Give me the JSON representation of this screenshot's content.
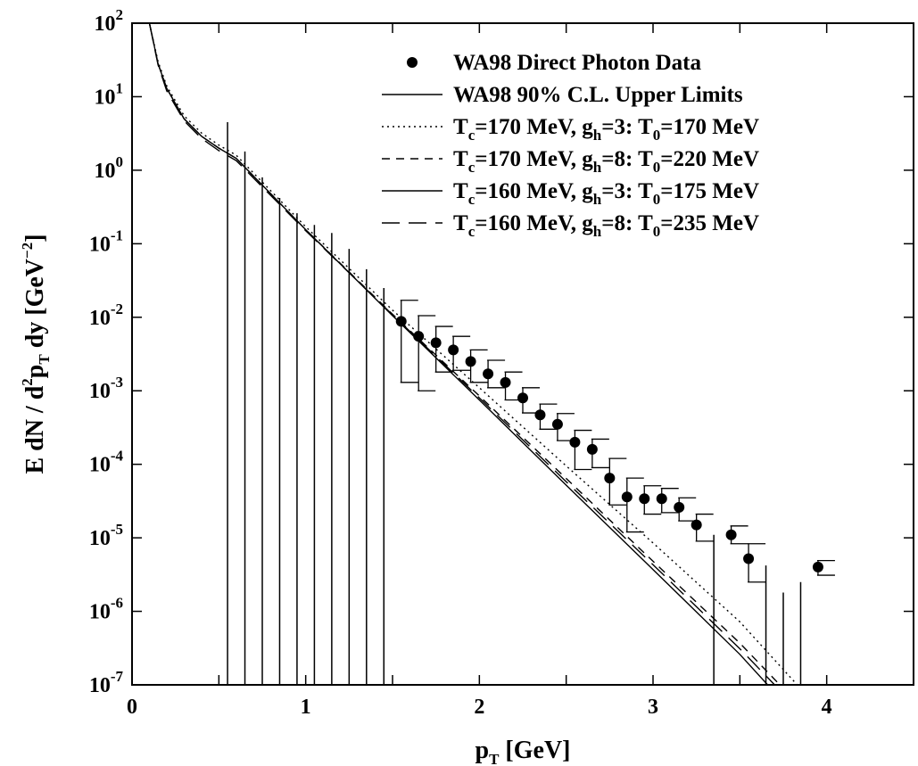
{
  "chart_data": {
    "type": "scatter",
    "xlabel": "p_T [GeV]",
    "ylabel": "E dN / d^2 p_T dy  [GeV^-2]",
    "xlim": [
      0,
      4.5
    ],
    "ylim": [
      1e-07,
      100
    ],
    "yscale": "log",
    "x_ticks": [
      0,
      1,
      2,
      3,
      4
    ],
    "x_tick_labels": [
      "0",
      "1",
      "2",
      "3",
      "4"
    ],
    "y_ticks": [
      {
        "base": "10",
        "exp": "2"
      },
      {
        "base": "10",
        "exp": "1"
      },
      {
        "base": "10",
        "exp": "0"
      },
      {
        "base": "10",
        "exp": "-1"
      },
      {
        "base": "10",
        "exp": "-2"
      },
      {
        "base": "10",
        "exp": "-3"
      },
      {
        "base": "10",
        "exp": "-4"
      },
      {
        "base": "10",
        "exp": "-5"
      },
      {
        "base": "10",
        "exp": "-6"
      },
      {
        "base": "10",
        "exp": "-7"
      }
    ],
    "legend_position": "top-right",
    "legend": [
      {
        "key": "data",
        "style": "point",
        "parts": [
          {
            "t": "WA98 Direct Photon Data",
            "s": ""
          }
        ]
      },
      {
        "key": "limits",
        "style": "solid",
        "parts": [
          {
            "t": "WA98 90% C.L. Upper Limits",
            "s": ""
          }
        ]
      },
      {
        "key": "c1",
        "style": "dotted",
        "parts": [
          {
            "t": "T",
            "s": ""
          },
          {
            "t": "c",
            "s": "sub"
          },
          {
            "t": "=170 MeV, g",
            "s": ""
          },
          {
            "t": "h",
            "s": "sub"
          },
          {
            "t": "=3: T",
            "s": ""
          },
          {
            "t": "0",
            "s": "sub"
          },
          {
            "t": "=170 MeV",
            "s": ""
          }
        ]
      },
      {
        "key": "c2",
        "style": "dashed",
        "parts": [
          {
            "t": "T",
            "s": ""
          },
          {
            "t": "c",
            "s": "sub"
          },
          {
            "t": "=170 MeV, g",
            "s": ""
          },
          {
            "t": "h",
            "s": "sub"
          },
          {
            "t": "=8: T",
            "s": ""
          },
          {
            "t": "0",
            "s": "sub"
          },
          {
            "t": "=220 MeV",
            "s": ""
          }
        ]
      },
      {
        "key": "c3",
        "style": "solid",
        "parts": [
          {
            "t": "T",
            "s": ""
          },
          {
            "t": "c",
            "s": "sub"
          },
          {
            "t": "=160 MeV, g",
            "s": ""
          },
          {
            "t": "h",
            "s": "sub"
          },
          {
            "t": "=3: T",
            "s": ""
          },
          {
            "t": "0",
            "s": "sub"
          },
          {
            "t": "=175 MeV",
            "s": ""
          }
        ]
      },
      {
        "key": "c4",
        "style": "longdash",
        "parts": [
          {
            "t": "T",
            "s": ""
          },
          {
            "t": "c",
            "s": "sub"
          },
          {
            "t": "=160 MeV, g",
            "s": ""
          },
          {
            "t": "h",
            "s": "sub"
          },
          {
            "t": "=8: T",
            "s": ""
          },
          {
            "t": "0",
            "s": "sub"
          },
          {
            "t": "=235 MeV",
            "s": ""
          }
        ]
      }
    ],
    "data_points": [
      {
        "x": 1.55,
        "y": 0.0088,
        "lo": 0.0013,
        "hi": 0.017
      },
      {
        "x": 1.65,
        "y": 0.0055,
        "lo": 0.001,
        "hi": 0.0105
      },
      {
        "x": 1.75,
        "y": 0.0045,
        "lo": 0.0018,
        "hi": 0.0075
      },
      {
        "x": 1.85,
        "y": 0.0036,
        "lo": 0.0019,
        "hi": 0.0055
      },
      {
        "x": 1.95,
        "y": 0.0025,
        "lo": 0.0013,
        "hi": 0.0036
      },
      {
        "x": 2.05,
        "y": 0.0017,
        "lo": 0.0011,
        "hi": 0.0026
      },
      {
        "x": 2.15,
        "y": 0.0013,
        "lo": 0.00075,
        "hi": 0.0018
      },
      {
        "x": 2.25,
        "y": 0.0008,
        "lo": 0.0005,
        "hi": 0.0011
      },
      {
        "x": 2.35,
        "y": 0.00047,
        "lo": 0.0003,
        "hi": 0.00066
      },
      {
        "x": 2.45,
        "y": 0.00035,
        "lo": 0.00021,
        "hi": 0.00049
      },
      {
        "x": 2.55,
        "y": 0.0002,
        "lo": 8.5e-05,
        "hi": 0.00029
      },
      {
        "x": 2.65,
        "y": 0.00016,
        "lo": 9e-05,
        "hi": 0.00022
      },
      {
        "x": 2.75,
        "y": 6.5e-05,
        "lo": 2.8e-05,
        "hi": 0.00012
      },
      {
        "x": 2.85,
        "y": 3.6e-05,
        "lo": 1.2e-05,
        "hi": 6.5e-05
      },
      {
        "x": 2.95,
        "y": 3.4e-05,
        "lo": 2.1e-05,
        "hi": 5.1e-05
      },
      {
        "x": 3.05,
        "y": 3.4e-05,
        "lo": 2.2e-05,
        "hi": 4.7e-05
      },
      {
        "x": 3.15,
        "y": 2.6e-05,
        "lo": 1.7e-05,
        "hi": 3.5e-05
      },
      {
        "x": 3.25,
        "y": 1.5e-05,
        "lo": 9e-06,
        "hi": 2.1e-05
      },
      {
        "x": 3.45,
        "y": 1.1e-05,
        "lo": 8.3e-06,
        "hi": 1.45e-05
      },
      {
        "x": 3.55,
        "y": 5.2e-06,
        "lo": 2.5e-06,
        "hi": 8.3e-06
      },
      {
        "x": 3.95,
        "y": 4e-06,
        "lo": 3.1e-06,
        "hi": 4.9e-06
      }
    ],
    "upper_limits": [
      {
        "x": 0.55,
        "y": 4.5
      },
      {
        "x": 0.65,
        "y": 1.8
      },
      {
        "x": 0.75,
        "y": 0.8
      },
      {
        "x": 0.85,
        "y": 0.42
      },
      {
        "x": 0.95,
        "y": 0.26
      },
      {
        "x": 1.05,
        "y": 0.18
      },
      {
        "x": 1.15,
        "y": 0.14
      },
      {
        "x": 1.25,
        "y": 0.085
      },
      {
        "x": 1.35,
        "y": 0.045
      },
      {
        "x": 1.45,
        "y": 0.025
      },
      {
        "x": 3.35,
        "y": 1.1e-05
      },
      {
        "x": 3.65,
        "y": 4.2e-06
      },
      {
        "x": 3.75,
        "y": 1.8e-06
      },
      {
        "x": 3.85,
        "y": 2.5e-06
      }
    ],
    "series": [
      {
        "key": "c1",
        "style": "dotted",
        "x": [
          0.1,
          0.15,
          0.2,
          0.3,
          0.4,
          0.5,
          0.6,
          1.0,
          1.5,
          2.0,
          2.5,
          3.0,
          3.5,
          3.83
        ],
        "y": [
          100,
          30,
          14,
          5.5,
          3.2,
          2.2,
          1.6,
          0.17,
          0.0125,
          0.0011,
          9.5e-05,
          8.5e-06,
          7.2e-07,
          1e-07
        ]
      },
      {
        "key": "c2",
        "style": "dashed",
        "x": [
          0.1,
          0.15,
          0.2,
          0.3,
          0.4,
          0.5,
          0.6,
          1.0,
          1.5,
          2.0,
          2.5,
          3.0,
          3.5,
          3.73
        ],
        "y": [
          100,
          28,
          13,
          5.0,
          2.9,
          2.0,
          1.45,
          0.155,
          0.011,
          0.00085,
          6.4e-05,
          4.8e-06,
          3.7e-07,
          1e-07
        ]
      },
      {
        "key": "c3",
        "style": "solid",
        "x": [
          0.1,
          0.15,
          0.2,
          0.3,
          0.4,
          0.5,
          0.6,
          1.0,
          1.5,
          2.0,
          2.5,
          3.0,
          3.5,
          3.66
        ],
        "y": [
          100,
          28,
          13,
          5.0,
          2.9,
          2.0,
          1.45,
          0.155,
          0.0105,
          0.00075,
          5.2e-05,
          3.7e-06,
          2.6e-07,
          1e-07
        ]
      },
      {
        "key": "c4",
        "style": "longdash",
        "x": [
          0.1,
          0.15,
          0.2,
          0.3,
          0.4,
          0.5,
          0.6,
          1.0,
          1.5,
          2.0,
          2.5,
          3.0,
          3.5,
          3.7
        ],
        "y": [
          100,
          27,
          12,
          4.7,
          2.7,
          1.85,
          1.35,
          0.15,
          0.0108,
          0.0008,
          5.8e-05,
          4.3e-06,
          3.1e-07,
          1e-07
        ]
      }
    ]
  }
}
